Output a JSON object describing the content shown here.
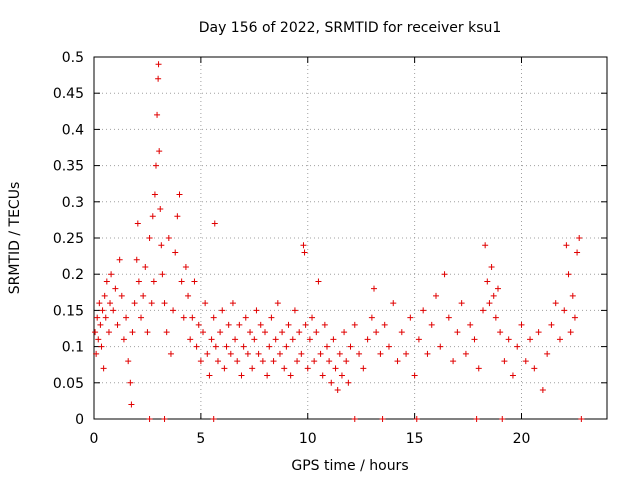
{
  "chart_data": {
    "type": "scatter",
    "title": "Day 156 of 2022, SRMTID for receiver ksu1",
    "xlabel": "GPS time / hours",
    "ylabel": "SRMTID / TECUs",
    "xlim": [
      0,
      24
    ],
    "ylim": [
      0,
      0.5
    ],
    "xticks": [
      0,
      5,
      10,
      15,
      20
    ],
    "xtick_labels": [
      "0",
      "5",
      "10",
      "15",
      "20"
    ],
    "yticks": [
      0,
      0.05,
      0.1,
      0.15,
      0.2,
      0.25,
      0.3,
      0.35,
      0.4,
      0.45,
      0.5
    ],
    "ytick_labels": [
      "0",
      "0.05",
      "0.1",
      "0.15",
      "0.2",
      "0.25",
      "0.3",
      "0.35",
      "0.4",
      "0.45",
      "0.5"
    ],
    "grid": true,
    "marker": "+",
    "color": "#e00000",
    "series": [
      {
        "name": "SRMTID",
        "points": [
          [
            0.05,
            0.12
          ],
          [
            0.1,
            0.09
          ],
          [
            0.15,
            0.14
          ],
          [
            0.2,
            0.11
          ],
          [
            0.25,
            0.16
          ],
          [
            0.3,
            0.13
          ],
          [
            0.35,
            0.1
          ],
          [
            0.4,
            0.15
          ],
          [
            0.45,
            0.07
          ],
          [
            0.5,
            0.17
          ],
          [
            0.55,
            0.14
          ],
          [
            0.6,
            0.19
          ],
          [
            0.7,
            0.12
          ],
          [
            0.75,
            0.16
          ],
          [
            0.8,
            0.2
          ],
          [
            0.9,
            0.15
          ],
          [
            1.0,
            0.18
          ],
          [
            1.1,
            0.13
          ],
          [
            1.2,
            0.22
          ],
          [
            1.3,
            0.17
          ],
          [
            1.4,
            0.11
          ],
          [
            1.5,
            0.14
          ],
          [
            1.6,
            0.08
          ],
          [
            1.7,
            0.05
          ],
          [
            1.75,
            0.02
          ],
          [
            1.8,
            0.12
          ],
          [
            1.9,
            0.16
          ],
          [
            2.0,
            0.22
          ],
          [
            2.05,
            0.27
          ],
          [
            2.1,
            0.19
          ],
          [
            2.2,
            0.14
          ],
          [
            2.3,
            0.17
          ],
          [
            2.4,
            0.21
          ],
          [
            2.5,
            0.12
          ],
          [
            2.6,
            0.25
          ],
          [
            2.7,
            0.16
          ],
          [
            2.75,
            0.28
          ],
          [
            2.8,
            0.19
          ],
          [
            2.85,
            0.31
          ],
          [
            2.9,
            0.35
          ],
          [
            2.95,
            0.42
          ],
          [
            3.0,
            0.47
          ],
          [
            3.02,
            0.49
          ],
          [
            3.05,
            0.37
          ],
          [
            3.1,
            0.29
          ],
          [
            3.15,
            0.24
          ],
          [
            3.2,
            0.2
          ],
          [
            3.3,
            0.16
          ],
          [
            3.4,
            0.12
          ],
          [
            3.5,
            0.25
          ],
          [
            3.6,
            0.09
          ],
          [
            3.7,
            0.15
          ],
          [
            3.8,
            0.23
          ],
          [
            3.9,
            0.28
          ],
          [
            4.0,
            0.31
          ],
          [
            4.1,
            0.19
          ],
          [
            4.2,
            0.14
          ],
          [
            4.3,
            0.21
          ],
          [
            4.4,
            0.17
          ],
          [
            4.5,
            0.11
          ],
          [
            4.6,
            0.14
          ],
          [
            4.7,
            0.19
          ],
          [
            4.8,
            0.1
          ],
          [
            4.9,
            0.13
          ],
          [
            5.0,
            0.08
          ],
          [
            5.1,
            0.12
          ],
          [
            5.2,
            0.16
          ],
          [
            5.3,
            0.09
          ],
          [
            5.4,
            0.06
          ],
          [
            5.5,
            0.11
          ],
          [
            5.6,
            0.14
          ],
          [
            5.65,
            0.27
          ],
          [
            5.7,
            0.1
          ],
          [
            5.8,
            0.08
          ],
          [
            5.9,
            0.12
          ],
          [
            6.0,
            0.15
          ],
          [
            6.1,
            0.07
          ],
          [
            6.2,
            0.1
          ],
          [
            6.3,
            0.13
          ],
          [
            6.4,
            0.09
          ],
          [
            6.5,
            0.16
          ],
          [
            6.6,
            0.11
          ],
          [
            6.7,
            0.08
          ],
          [
            6.8,
            0.13
          ],
          [
            6.9,
            0.06
          ],
          [
            7.0,
            0.1
          ],
          [
            7.1,
            0.14
          ],
          [
            7.2,
            0.09
          ],
          [
            7.3,
            0.12
          ],
          [
            7.4,
            0.07
          ],
          [
            7.5,
            0.11
          ],
          [
            7.6,
            0.15
          ],
          [
            7.7,
            0.09
          ],
          [
            7.8,
            0.13
          ],
          [
            7.9,
            0.08
          ],
          [
            8.0,
            0.12
          ],
          [
            8.1,
            0.06
          ],
          [
            8.2,
            0.1
          ],
          [
            8.3,
            0.14
          ],
          [
            8.4,
            0.08
          ],
          [
            8.5,
            0.11
          ],
          [
            8.6,
            0.16
          ],
          [
            8.7,
            0.09
          ],
          [
            8.8,
            0.12
          ],
          [
            8.9,
            0.07
          ],
          [
            9.0,
            0.1
          ],
          [
            9.1,
            0.13
          ],
          [
            9.2,
            0.06
          ],
          [
            9.3,
            0.11
          ],
          [
            9.4,
            0.15
          ],
          [
            9.5,
            0.08
          ],
          [
            9.6,
            0.12
          ],
          [
            9.7,
            0.09
          ],
          [
            9.8,
            0.24
          ],
          [
            9.85,
            0.23
          ],
          [
            9.9,
            0.13
          ],
          [
            10.0,
            0.07
          ],
          [
            10.1,
            0.11
          ],
          [
            10.2,
            0.14
          ],
          [
            10.3,
            0.08
          ],
          [
            10.4,
            0.12
          ],
          [
            10.5,
            0.19
          ],
          [
            10.6,
            0.09
          ],
          [
            10.7,
            0.06
          ],
          [
            10.8,
            0.13
          ],
          [
            10.9,
            0.1
          ],
          [
            11.0,
            0.08
          ],
          [
            11.1,
            0.05
          ],
          [
            11.2,
            0.11
          ],
          [
            11.3,
            0.07
          ],
          [
            11.4,
            0.04
          ],
          [
            11.5,
            0.09
          ],
          [
            11.6,
            0.06
          ],
          [
            11.7,
            0.12
          ],
          [
            11.8,
            0.08
          ],
          [
            11.9,
            0.05
          ],
          [
            12.0,
            0.1
          ],
          [
            12.2,
            0.13
          ],
          [
            12.4,
            0.09
          ],
          [
            12.6,
            0.07
          ],
          [
            12.8,
            0.11
          ],
          [
            13.0,
            0.14
          ],
          [
            13.1,
            0.18
          ],
          [
            13.2,
            0.12
          ],
          [
            13.4,
            0.09
          ],
          [
            13.6,
            0.13
          ],
          [
            13.8,
            0.1
          ],
          [
            14.0,
            0.16
          ],
          [
            14.2,
            0.08
          ],
          [
            14.4,
            0.12
          ],
          [
            14.6,
            0.09
          ],
          [
            14.8,
            0.14
          ],
          [
            15.0,
            0.06
          ],
          [
            15.2,
            0.11
          ],
          [
            15.4,
            0.15
          ],
          [
            15.6,
            0.09
          ],
          [
            15.8,
            0.13
          ],
          [
            16.0,
            0.17
          ],
          [
            16.2,
            0.1
          ],
          [
            16.4,
            0.2
          ],
          [
            16.6,
            0.14
          ],
          [
            16.8,
            0.08
          ],
          [
            17.0,
            0.12
          ],
          [
            17.2,
            0.16
          ],
          [
            17.4,
            0.09
          ],
          [
            17.6,
            0.13
          ],
          [
            17.8,
            0.11
          ],
          [
            18.0,
            0.07
          ],
          [
            18.2,
            0.15
          ],
          [
            18.3,
            0.24
          ],
          [
            18.4,
            0.19
          ],
          [
            18.5,
            0.16
          ],
          [
            18.6,
            0.21
          ],
          [
            18.7,
            0.17
          ],
          [
            18.8,
            0.14
          ],
          [
            18.9,
            0.18
          ],
          [
            19.0,
            0.12
          ],
          [
            19.2,
            0.08
          ],
          [
            19.4,
            0.11
          ],
          [
            19.6,
            0.06
          ],
          [
            19.8,
            0.1
          ],
          [
            20.0,
            0.13
          ],
          [
            20.2,
            0.08
          ],
          [
            20.4,
            0.11
          ],
          [
            20.6,
            0.07
          ],
          [
            20.8,
            0.12
          ],
          [
            21.0,
            0.04
          ],
          [
            21.2,
            0.09
          ],
          [
            21.4,
            0.13
          ],
          [
            21.6,
            0.16
          ],
          [
            21.8,
            0.11
          ],
          [
            22.0,
            0.15
          ],
          [
            22.1,
            0.24
          ],
          [
            22.2,
            0.2
          ],
          [
            22.3,
            0.12
          ],
          [
            22.4,
            0.17
          ],
          [
            22.5,
            0.14
          ],
          [
            22.6,
            0.23
          ],
          [
            22.7,
            0.25
          ]
        ]
      }
    ],
    "zero_markers_x": [
      2.6,
      3.3,
      5.6,
      12.2,
      13.5,
      15.1,
      17.9,
      19.1,
      22.8
    ]
  }
}
